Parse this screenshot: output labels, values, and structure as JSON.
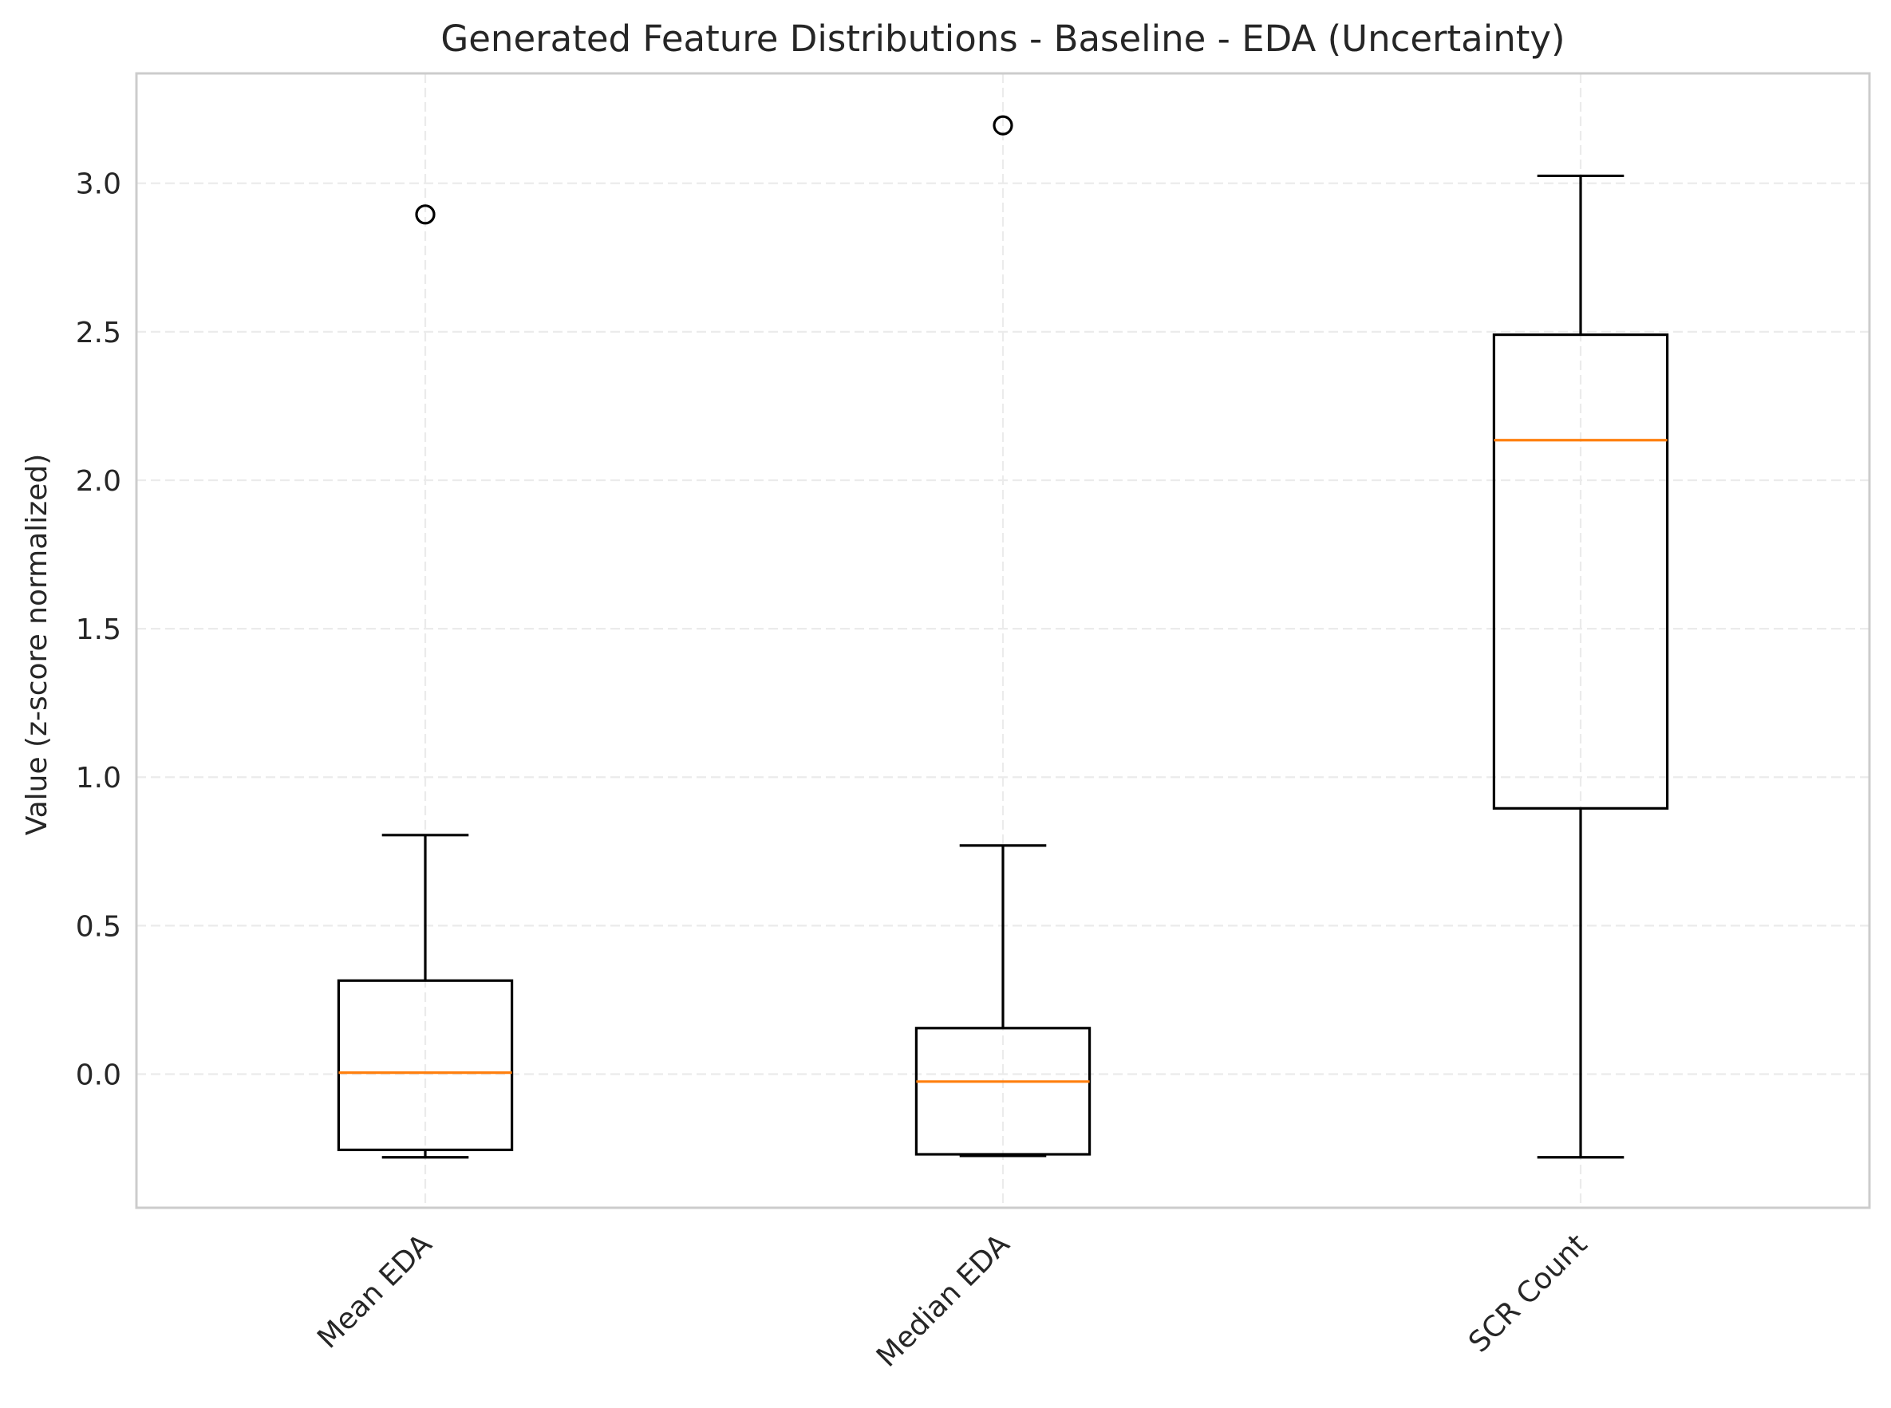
{
  "chart_data": {
    "type": "boxplot",
    "title": "Generated Feature Distributions - Baseline - EDA (Uncertainty)",
    "ylabel": "Value (z-score normalized)",
    "xlabel": "",
    "ylim": [
      -0.45,
      3.37
    ],
    "yticks": [
      0.0,
      0.5,
      1.0,
      1.5,
      2.0,
      2.5,
      3.0
    ],
    "ytick_labels": [
      "0.0",
      "0.5",
      "1.0",
      "1.5",
      "2.0",
      "2.5",
      "3.0"
    ],
    "grid": true,
    "categories": [
      "Mean EDA",
      "Median EDA",
      "SCR Count"
    ],
    "boxes": [
      {
        "label": "Mean EDA",
        "whisker_low": -0.28,
        "q1": -0.255,
        "median": 0.005,
        "q3": 0.315,
        "whisker_high": 0.805,
        "fliers": [
          2.895
        ]
      },
      {
        "label": "Median EDA",
        "whisker_low": -0.275,
        "q1": -0.27,
        "median": -0.025,
        "q3": 0.155,
        "whisker_high": 0.77,
        "fliers": [
          3.195
        ]
      },
      {
        "label": "SCR Count",
        "whisker_low": -0.28,
        "q1": 0.895,
        "median": 2.135,
        "q3": 2.49,
        "whisker_high": 3.025,
        "fliers": []
      }
    ],
    "colors": {
      "box": "#000000",
      "median": "#ff7f0e",
      "grid": "#ebebeb",
      "frame": "#cccccc"
    }
  }
}
